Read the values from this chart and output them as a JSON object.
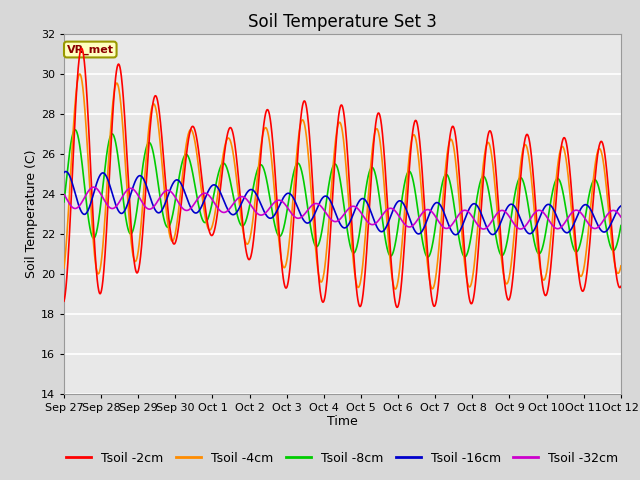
{
  "title": "Soil Temperature Set 3",
  "xlabel": "Time",
  "ylabel": "Soil Temperature (C)",
  "ylim": [
    14,
    32
  ],
  "yticks": [
    14,
    16,
    18,
    20,
    22,
    24,
    26,
    28,
    30,
    32
  ],
  "x_tick_labels": [
    "Sep 27",
    "Sep 28",
    "Sep 29",
    "Sep 30",
    "Oct 1",
    "Oct 2",
    "Oct 3",
    "Oct 4",
    "Oct 5",
    "Oct 6",
    "Oct 7",
    "Oct 8",
    "Oct 9",
    "Oct 10",
    "Oct 11",
    "Oct 12"
  ],
  "legend_label": "VR_met",
  "series_labels": [
    "Tsoil -2cm",
    "Tsoil -4cm",
    "Tsoil -8cm",
    "Tsoil -16cm",
    "Tsoil -32cm"
  ],
  "series_colors": [
    "#FF0000",
    "#FF8C00",
    "#00CC00",
    "#0000CC",
    "#CC00CC"
  ],
  "fig_bg_color": "#D8D8D8",
  "plot_bg_color": "#E8E8E8",
  "grid_color": "#FFFFFF",
  "title_fontsize": 12,
  "axis_label_fontsize": 9,
  "tick_fontsize": 8,
  "legend_fontsize": 9,
  "linewidth": 1.2
}
